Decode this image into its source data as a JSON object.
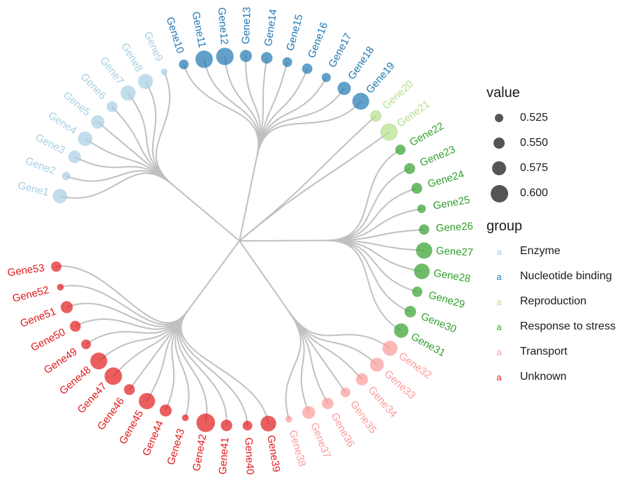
{
  "chart_data": {
    "type": "dendrogram",
    "layout": "circular",
    "leaves": [
      {
        "label": "Gene1",
        "group": "Enzyme",
        "value": 0.575
      },
      {
        "label": "Gene2",
        "group": "Enzyme",
        "value": 0.525
      },
      {
        "label": "Gene3",
        "group": "Enzyme",
        "value": 0.56
      },
      {
        "label": "Gene4",
        "group": "Enzyme",
        "value": 0.575
      },
      {
        "label": "Gene5",
        "group": "Enzyme",
        "value": 0.565
      },
      {
        "label": "Gene6",
        "group": "Enzyme",
        "value": 0.545
      },
      {
        "label": "Gene7",
        "group": "Enzyme",
        "value": 0.58
      },
      {
        "label": "Gene8",
        "group": "Enzyme",
        "value": 0.58
      },
      {
        "label": "Gene9",
        "group": "Enzyme",
        "value": 0.51
      },
      {
        "label": "Gene10",
        "group": "Nucleotide binding",
        "value": 0.535
      },
      {
        "label": "Gene11",
        "group": "Nucleotide binding",
        "value": 0.6
      },
      {
        "label": "Gene12",
        "group": "Nucleotide binding",
        "value": 0.6
      },
      {
        "label": "Gene13",
        "group": "Nucleotide binding",
        "value": 0.555
      },
      {
        "label": "Gene14",
        "group": "Nucleotide binding",
        "value": 0.55
      },
      {
        "label": "Gene15",
        "group": "Nucleotide binding",
        "value": 0.535
      },
      {
        "label": "Gene16",
        "group": "Nucleotide binding",
        "value": 0.54
      },
      {
        "label": "Gene17",
        "group": "Nucleotide binding",
        "value": 0.53
      },
      {
        "label": "Gene18",
        "group": "Nucleotide binding",
        "value": 0.565
      },
      {
        "label": "Gene19",
        "group": "Nucleotide binding",
        "value": 0.595
      },
      {
        "label": "Gene20",
        "group": "Reproduction",
        "value": 0.55
      },
      {
        "label": "Gene21",
        "group": "Reproduction",
        "value": 0.6
      },
      {
        "label": "Gene22",
        "group": "Response to stress",
        "value": 0.54
      },
      {
        "label": "Gene23",
        "group": "Response to stress",
        "value": 0.545
      },
      {
        "label": "Gene24",
        "group": "Response to stress",
        "value": 0.545
      },
      {
        "label": "Gene25",
        "group": "Response to stress",
        "value": 0.525
      },
      {
        "label": "Gene26",
        "group": "Response to stress",
        "value": 0.54
      },
      {
        "label": "Gene27",
        "group": "Response to stress",
        "value": 0.59
      },
      {
        "label": "Gene28",
        "group": "Response to stress",
        "value": 0.585
      },
      {
        "label": "Gene29",
        "group": "Response to stress",
        "value": 0.54
      },
      {
        "label": "Gene30",
        "group": "Response to stress",
        "value": 0.55
      },
      {
        "label": "Gene31",
        "group": "Response to stress",
        "value": 0.575
      },
      {
        "label": "Gene32",
        "group": "Transport",
        "value": 0.58
      },
      {
        "label": "Gene33",
        "group": "Transport",
        "value": 0.57
      },
      {
        "label": "Gene34",
        "group": "Transport",
        "value": 0.555
      },
      {
        "label": "Gene35",
        "group": "Transport",
        "value": 0.535
      },
      {
        "label": "Gene36",
        "group": "Transport",
        "value": 0.55
      },
      {
        "label": "Gene37",
        "group": "Transport",
        "value": 0.56
      },
      {
        "label": "Gene38",
        "group": "Transport",
        "value": 0.51
      },
      {
        "label": "Gene39",
        "group": "Unknown",
        "value": 0.585
      },
      {
        "label": "Gene40",
        "group": "Unknown",
        "value": 0.535
      },
      {
        "label": "Gene41",
        "group": "Unknown",
        "value": 0.55
      },
      {
        "label": "Gene42",
        "group": "Unknown",
        "value": 0.61
      },
      {
        "label": "Gene43",
        "group": "Unknown",
        "value": 0.51
      },
      {
        "label": "Gene44",
        "group": "Unknown",
        "value": 0.555
      },
      {
        "label": "Gene45",
        "group": "Unknown",
        "value": 0.59
      },
      {
        "label": "Gene46",
        "group": "Unknown",
        "value": 0.545
      },
      {
        "label": "Gene47",
        "group": "Unknown",
        "value": 0.6
      },
      {
        "label": "Gene48",
        "group": "Unknown",
        "value": 0.595
      },
      {
        "label": "Gene49",
        "group": "Unknown",
        "value": 0.535
      },
      {
        "label": "Gene50",
        "group": "Unknown",
        "value": 0.545
      },
      {
        "label": "Gene51",
        "group": "Unknown",
        "value": 0.555
      },
      {
        "label": "Gene52",
        "group": "Unknown",
        "value": 0.51
      },
      {
        "label": "Gene53",
        "group": "Unknown",
        "value": 0.54
      }
    ],
    "groups": [
      {
        "name": "Enzyme",
        "color": "#a6cee3"
      },
      {
        "name": "Nucleotide binding",
        "color": "#1f78b4"
      },
      {
        "name": "Reproduction",
        "color": "#b2df8a"
      },
      {
        "name": "Response to stress",
        "color": "#33a02c"
      },
      {
        "name": "Transport",
        "color": "#fb9a99"
      },
      {
        "name": "Unknown",
        "color": "#e31a1c"
      }
    ],
    "legend": {
      "value_title": "value",
      "value_breaks": [
        "0.525",
        "0.550",
        "0.575",
        "0.600"
      ],
      "group_title": "group",
      "key_glyph": "a",
      "placement": "right"
    }
  }
}
